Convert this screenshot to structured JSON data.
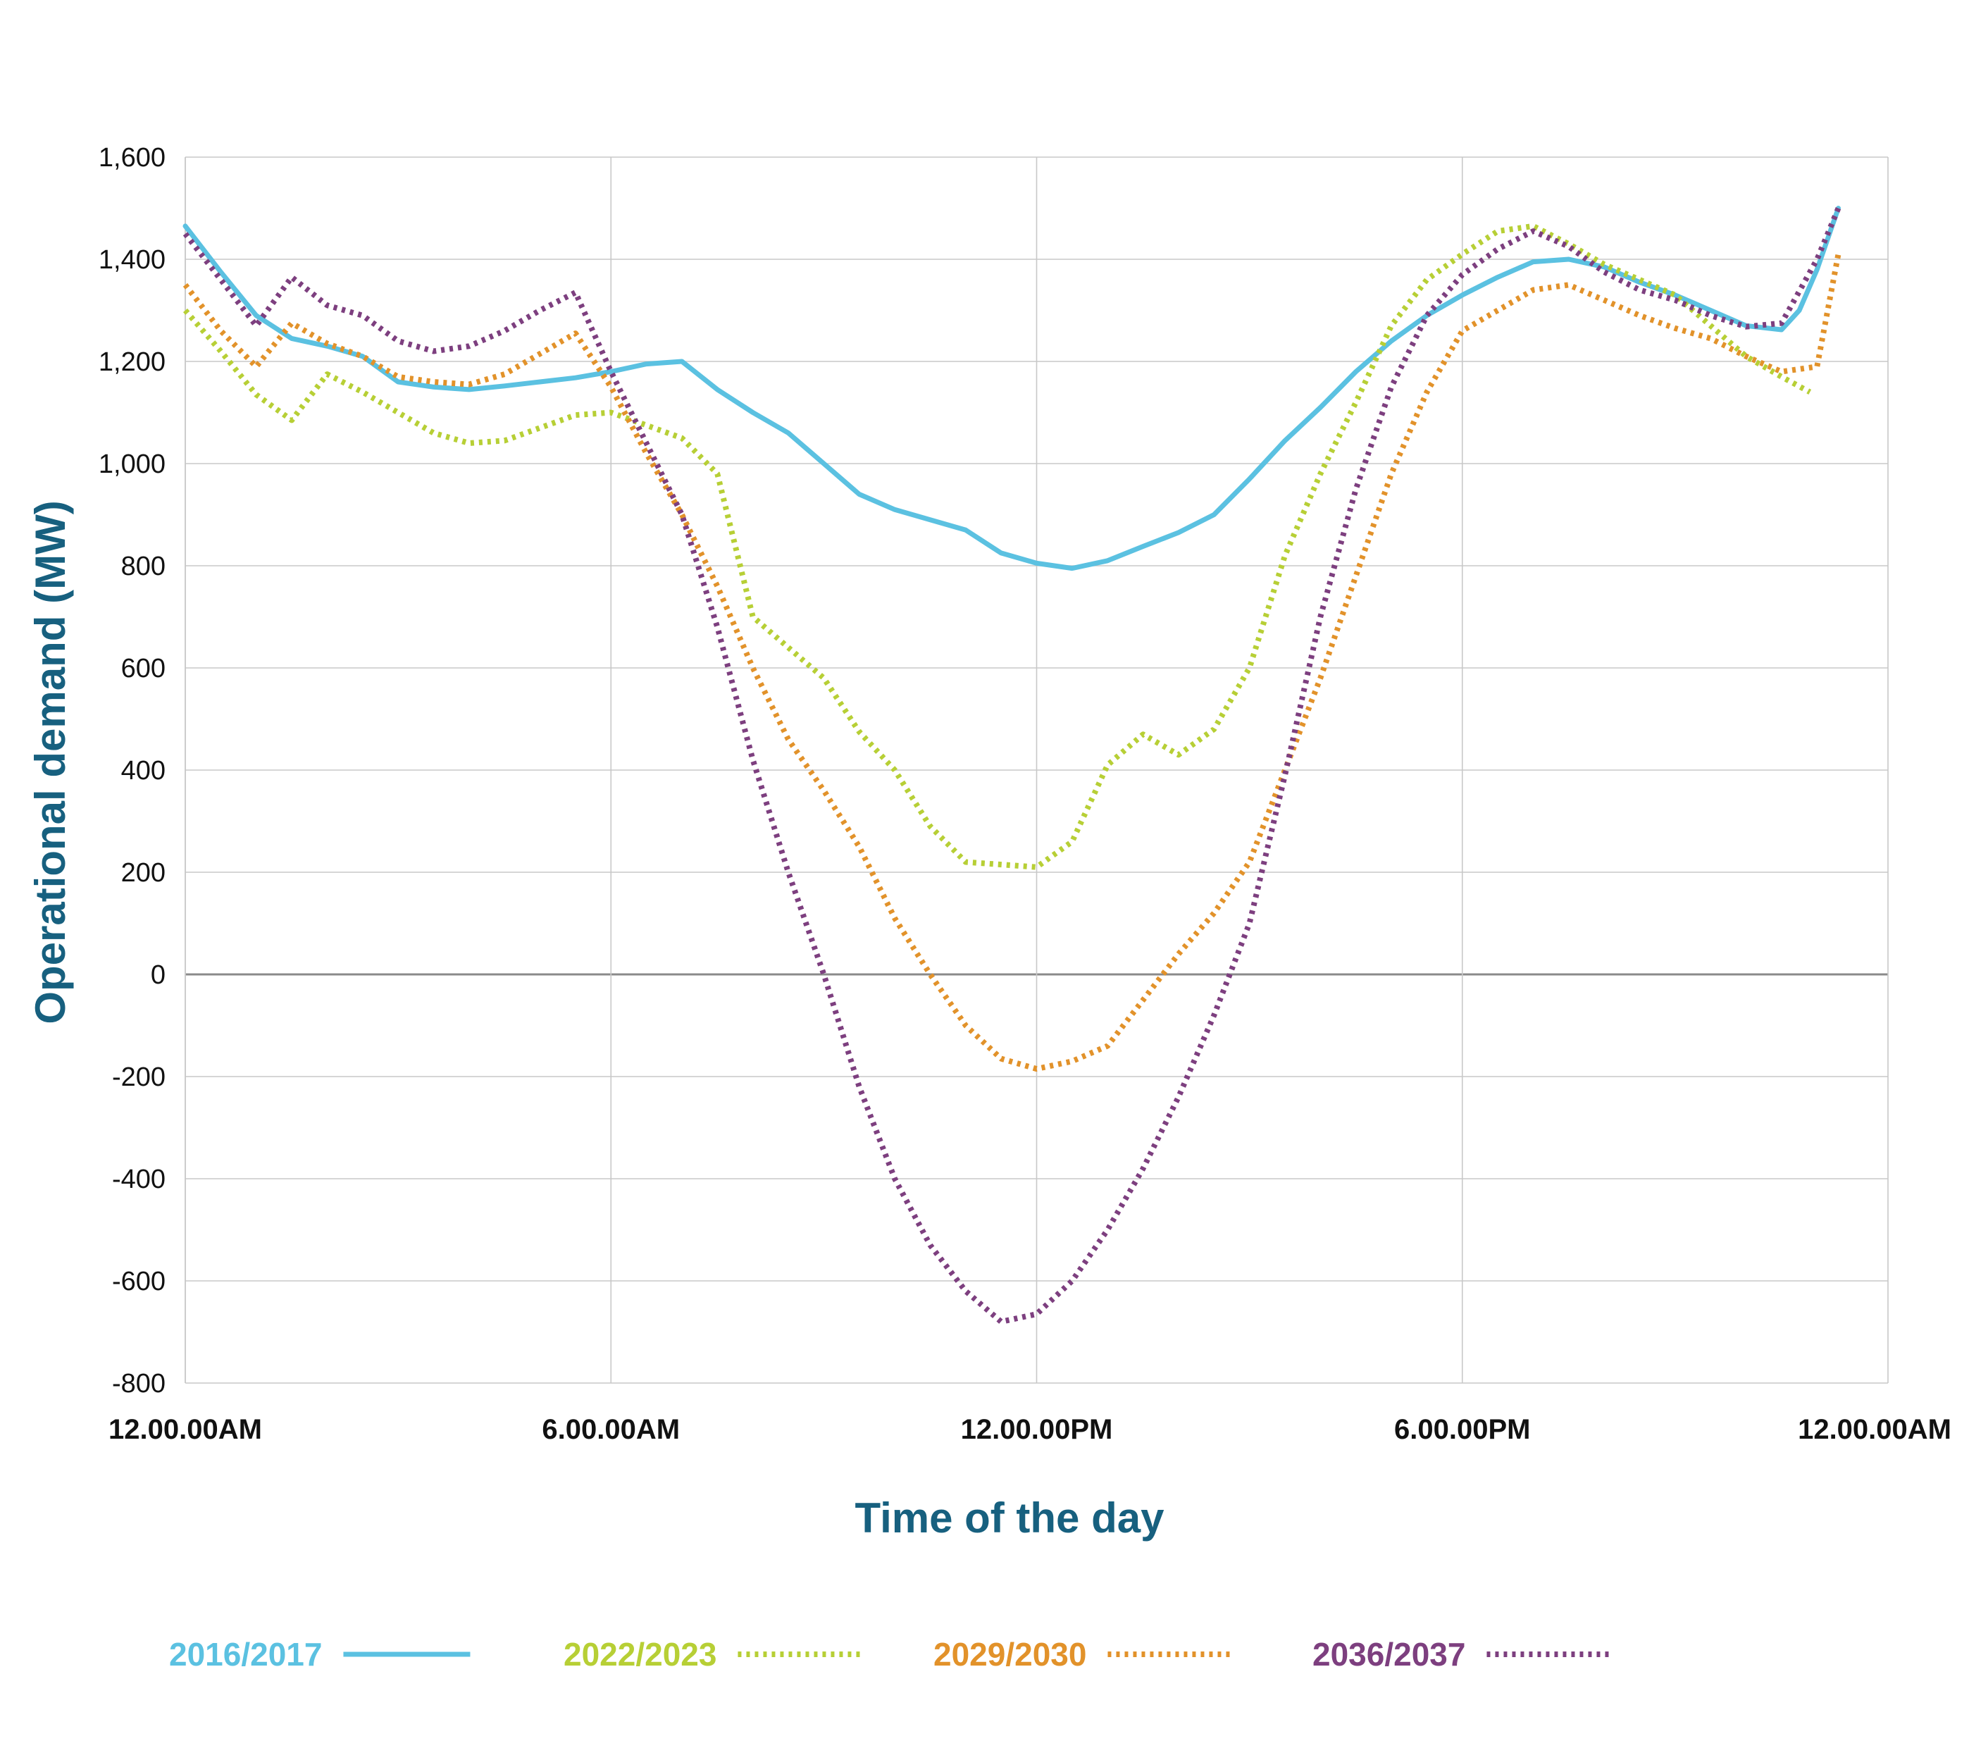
{
  "chart_data": {
    "type": "line",
    "title": "",
    "xlabel": "Time of the day",
    "ylabel": "Operational demand (MW)",
    "x_unit": "hours",
    "xlim": [
      0,
      24
    ],
    "ylim": [
      -800,
      1600
    ],
    "y_ticks": [
      "1,600",
      "1,400",
      "1,200",
      "1,000",
      "800",
      "600",
      "400",
      "200",
      "0",
      "-200",
      "-400",
      "-600",
      "-800"
    ],
    "y_tick_values": [
      1600,
      1400,
      1200,
      1000,
      800,
      600,
      400,
      200,
      0,
      -200,
      -400,
      -600,
      -800
    ],
    "x_ticks": [
      "12.00.00AM",
      "6.00.00AM",
      "12.00.00PM",
      "6.00.00PM",
      "12.00.00AM"
    ],
    "x_tick_values": [
      0,
      6,
      12,
      18,
      24
    ],
    "grid": true,
    "legend_position": "bottom",
    "title_color": "#17607f",
    "series": [
      {
        "name": "2016/2017",
        "color": "#5bc1e1",
        "style": "solid",
        "points": [
          [
            0,
            1465
          ],
          [
            0.5,
            1375
          ],
          [
            1,
            1290
          ],
          [
            1.5,
            1245
          ],
          [
            2,
            1230
          ],
          [
            2.5,
            1210
          ],
          [
            3,
            1160
          ],
          [
            3.5,
            1150
          ],
          [
            4,
            1145
          ],
          [
            4.5,
            1152
          ],
          [
            5,
            1160
          ],
          [
            5.5,
            1168
          ],
          [
            6,
            1180
          ],
          [
            6.5,
            1195
          ],
          [
            7,
            1200
          ],
          [
            7.5,
            1145
          ],
          [
            8,
            1100
          ],
          [
            8.5,
            1060
          ],
          [
            9,
            1000
          ],
          [
            9.25,
            970
          ],
          [
            9.5,
            940
          ],
          [
            10,
            910
          ],
          [
            10.5,
            890
          ],
          [
            11,
            870
          ],
          [
            11.5,
            825
          ],
          [
            12,
            805
          ],
          [
            12.5,
            795
          ],
          [
            13,
            810
          ],
          [
            13.5,
            838
          ],
          [
            14,
            865
          ],
          [
            14.5,
            900
          ],
          [
            15,
            970
          ],
          [
            15.5,
            1045
          ],
          [
            16,
            1110
          ],
          [
            16.5,
            1180
          ],
          [
            17,
            1240
          ],
          [
            17.5,
            1290
          ],
          [
            18,
            1330
          ],
          [
            18.5,
            1365
          ],
          [
            19,
            1395
          ],
          [
            19.5,
            1400
          ],
          [
            20,
            1385
          ],
          [
            20.5,
            1355
          ],
          [
            21,
            1330
          ],
          [
            21.5,
            1300
          ],
          [
            22,
            1270
          ],
          [
            22.5,
            1262
          ],
          [
            22.75,
            1300
          ],
          [
            23,
            1380
          ],
          [
            23.2,
            1460
          ],
          [
            23.3,
            1500
          ]
        ]
      },
      {
        "name": "2022/2023",
        "color": "#b7cf35",
        "style": "dotted",
        "points": [
          [
            0,
            1300
          ],
          [
            0.5,
            1220
          ],
          [
            1,
            1135
          ],
          [
            1.5,
            1085
          ],
          [
            2,
            1175
          ],
          [
            2.5,
            1140
          ],
          [
            3,
            1100
          ],
          [
            3.5,
            1060
          ],
          [
            4,
            1040
          ],
          [
            4.5,
            1045
          ],
          [
            5,
            1070
          ],
          [
            5.5,
            1095
          ],
          [
            6,
            1100
          ],
          [
            6.5,
            1075
          ],
          [
            7,
            1050
          ],
          [
            7.5,
            980
          ],
          [
            8,
            700
          ],
          [
            8.5,
            640
          ],
          [
            9,
            580
          ],
          [
            9.5,
            475
          ],
          [
            10,
            400
          ],
          [
            10.5,
            290
          ],
          [
            11,
            220
          ],
          [
            11.5,
            215
          ],
          [
            12,
            210
          ],
          [
            12.5,
            260
          ],
          [
            13,
            410
          ],
          [
            13.5,
            470
          ],
          [
            14,
            430
          ],
          [
            14.5,
            480
          ],
          [
            15,
            600
          ],
          [
            15.5,
            820
          ],
          [
            16,
            980
          ],
          [
            16.5,
            1120
          ],
          [
            17,
            1270
          ],
          [
            17.5,
            1360
          ],
          [
            18,
            1410
          ],
          [
            18.5,
            1455
          ],
          [
            19,
            1465
          ],
          [
            19.5,
            1430
          ],
          [
            20,
            1390
          ],
          [
            20.5,
            1360
          ],
          [
            21,
            1330
          ],
          [
            21.5,
            1270
          ],
          [
            22,
            1210
          ],
          [
            22.5,
            1170
          ],
          [
            22.9,
            1140
          ]
        ]
      },
      {
        "name": "2029/2030",
        "color": "#e2922a",
        "style": "dotted",
        "points": [
          [
            0,
            1350
          ],
          [
            0.5,
            1260
          ],
          [
            1,
            1190
          ],
          [
            1.5,
            1275
          ],
          [
            2,
            1235
          ],
          [
            2.5,
            1210
          ],
          [
            3,
            1170
          ],
          [
            3.5,
            1160
          ],
          [
            4,
            1155
          ],
          [
            4.5,
            1175
          ],
          [
            5,
            1215
          ],
          [
            5.5,
            1255
          ],
          [
            6,
            1150
          ],
          [
            6.5,
            1020
          ],
          [
            7,
            900
          ],
          [
            7.5,
            760
          ],
          [
            8,
            600
          ],
          [
            8.5,
            460
          ],
          [
            9,
            360
          ],
          [
            9.5,
            250
          ],
          [
            10,
            110
          ],
          [
            10.5,
            0
          ],
          [
            11,
            -100
          ],
          [
            11.5,
            -165
          ],
          [
            12,
            -185
          ],
          [
            12.5,
            -170
          ],
          [
            13,
            -140
          ],
          [
            13.5,
            -50
          ],
          [
            14,
            40
          ],
          [
            14.5,
            120
          ],
          [
            15,
            220
          ],
          [
            15.5,
            400
          ],
          [
            16,
            580
          ],
          [
            16.5,
            780
          ],
          [
            17,
            980
          ],
          [
            17.5,
            1140
          ],
          [
            18,
            1260
          ],
          [
            18.5,
            1300
          ],
          [
            19,
            1340
          ],
          [
            19.5,
            1350
          ],
          [
            20,
            1320
          ],
          [
            20.5,
            1290
          ],
          [
            21,
            1265
          ],
          [
            21.5,
            1245
          ],
          [
            22,
            1210
          ],
          [
            22.5,
            1180
          ],
          [
            23,
            1190
          ],
          [
            23.3,
            1410
          ]
        ]
      },
      {
        "name": "2036/2037",
        "color": "#7d3f7f",
        "style": "dotted",
        "points": [
          [
            0,
            1450
          ],
          [
            0.5,
            1360
          ],
          [
            1,
            1270
          ],
          [
            1.5,
            1365
          ],
          [
            2,
            1310
          ],
          [
            2.5,
            1290
          ],
          [
            3,
            1240
          ],
          [
            3.5,
            1220
          ],
          [
            4,
            1230
          ],
          [
            4.5,
            1260
          ],
          [
            5,
            1300
          ],
          [
            5.5,
            1335
          ],
          [
            6,
            1180
          ],
          [
            6.5,
            1040
          ],
          [
            7,
            900
          ],
          [
            7.5,
            680
          ],
          [
            8,
            420
          ],
          [
            8.5,
            200
          ],
          [
            9,
            0
          ],
          [
            9.5,
            -220
          ],
          [
            10,
            -400
          ],
          [
            10.5,
            -530
          ],
          [
            11,
            -620
          ],
          [
            11.5,
            -680
          ],
          [
            12,
            -665
          ],
          [
            12.5,
            -600
          ],
          [
            13,
            -500
          ],
          [
            13.5,
            -380
          ],
          [
            14,
            -240
          ],
          [
            14.5,
            -80
          ],
          [
            15,
            100
          ],
          [
            15.5,
            390
          ],
          [
            16,
            700
          ],
          [
            16.5,
            950
          ],
          [
            17,
            1150
          ],
          [
            17.5,
            1290
          ],
          [
            18,
            1370
          ],
          [
            18.5,
            1420
          ],
          [
            19,
            1455
          ],
          [
            19.5,
            1425
          ],
          [
            20,
            1375
          ],
          [
            20.5,
            1340
          ],
          [
            21,
            1320
          ],
          [
            21.5,
            1290
          ],
          [
            22,
            1268
          ],
          [
            22.5,
            1275
          ],
          [
            23,
            1400
          ],
          [
            23.3,
            1500
          ]
        ]
      }
    ]
  }
}
